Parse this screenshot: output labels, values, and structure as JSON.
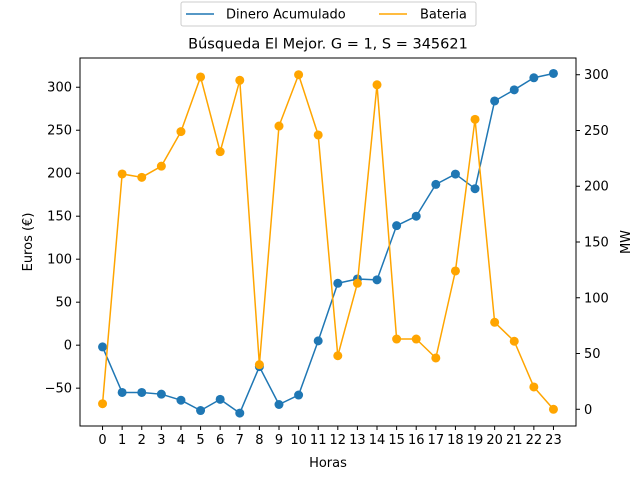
{
  "chart_data": {
    "type": "line",
    "title": "Búsqueda El Mejor. G = 1, S = 345621",
    "xlabel": "Horas",
    "ylabel": "Euros (€)",
    "y2label": "MW",
    "x": [
      0,
      1,
      2,
      3,
      4,
      5,
      6,
      7,
      8,
      9,
      10,
      11,
      12,
      13,
      14,
      15,
      16,
      17,
      18,
      19,
      20,
      21,
      22,
      23
    ],
    "ylim": [
      -94,
      334
    ],
    "y2lim": [
      -15,
      315
    ],
    "yticks": [
      -50,
      0,
      50,
      100,
      150,
      200,
      250,
      300
    ],
    "y2ticks": [
      0,
      50,
      100,
      150,
      200,
      250,
      300
    ],
    "grid": false,
    "legend_position": "top-center",
    "series": [
      {
        "name": "Dinero Acumulado",
        "axis": "left",
        "color": "#1f77b4",
        "values": [
          -2,
          -55,
          -55,
          -57,
          -64,
          -76,
          -63,
          -79,
          -25,
          -69,
          -58,
          5,
          72,
          77,
          76,
          139,
          150,
          187,
          199,
          182,
          284,
          297,
          311,
          316
        ]
      },
      {
        "name": "Bateria",
        "axis": "right",
        "color": "#ffa500",
        "values": [
          5,
          211,
          208,
          218,
          249,
          298,
          231,
          295,
          40,
          254,
          300,
          246,
          48,
          113,
          291,
          63,
          63,
          46,
          124,
          260,
          78,
          61,
          20,
          0
        ]
      }
    ]
  }
}
